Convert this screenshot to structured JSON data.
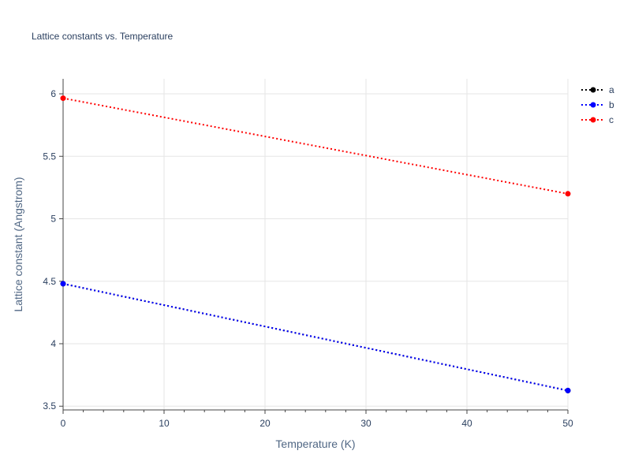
{
  "chart_data": {
    "type": "line",
    "title": "Lattice constants vs. Temperature",
    "xlabel": "Temperature (K)",
    "ylabel": "Lattice constant (Angstrom)",
    "xlim": [
      0,
      50
    ],
    "ylim": [
      3.47,
      6.12
    ],
    "xticks": [
      0,
      10,
      20,
      30,
      40,
      50
    ],
    "xtick_labels": [
      "0",
      "10",
      "20",
      "30",
      "40",
      "50"
    ],
    "yticks": [
      3.5,
      4,
      4.5,
      5,
      5.5,
      6
    ],
    "ytick_labels": [
      "3.5",
      "4",
      "4.5",
      "5",
      "5.5",
      "6"
    ],
    "x_minor_tick_step": 2,
    "grid": true,
    "legend_position": "top-right",
    "series": [
      {
        "name": "a",
        "color": "#000000",
        "x": [
          0,
          50
        ],
        "values": [
          4.48,
          3.625
        ],
        "line_style": "dotted",
        "marker": "circle"
      },
      {
        "name": "b",
        "color": "#0000ff",
        "x": [
          0,
          50
        ],
        "values": [
          4.48,
          3.625
        ],
        "line_style": "dotted",
        "marker": "circle"
      },
      {
        "name": "c",
        "color": "#ff0000",
        "x": [
          0,
          50
        ],
        "values": [
          5.965,
          5.2
        ],
        "line_style": "dotted",
        "marker": "circle"
      }
    ]
  }
}
